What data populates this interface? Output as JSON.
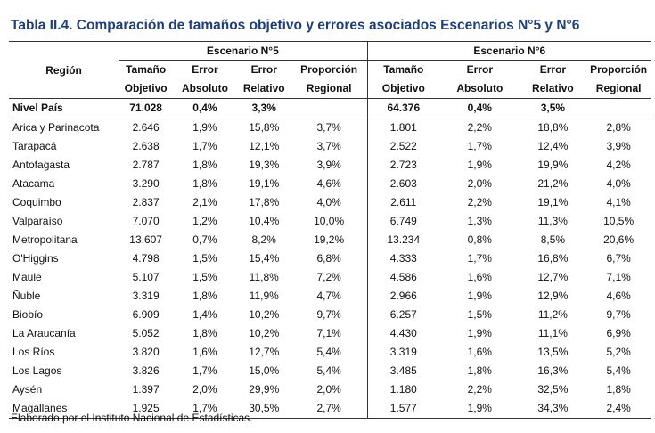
{
  "title": "Tabla II.4. Comparación de tamaños objetivo y errores asociados Escenarios N°5 y N°6",
  "header": {
    "region": "Región",
    "scenario5": "Escenario N°5",
    "scenario6": "Escenario N°6",
    "cols": [
      {
        "l1": "Tamaño",
        "l2": "Objetivo"
      },
      {
        "l1": "Error",
        "l2": "Absoluto"
      },
      {
        "l1": "Error",
        "l2": "Relativo"
      },
      {
        "l1": "Proporción",
        "l2": "Regional"
      }
    ]
  },
  "national": {
    "region": "Nivel País",
    "e5": [
      "71.028",
      "0,4%",
      "3,3%",
      ""
    ],
    "e6": [
      "64.376",
      "0,4%",
      "3,5%",
      ""
    ]
  },
  "rows": [
    {
      "region": "Arica y Parinacota",
      "e5": [
        "2.646",
        "1,9%",
        "15,8%",
        "3,7%"
      ],
      "e6": [
        "1.801",
        "2,2%",
        "18,8%",
        "2,8%"
      ]
    },
    {
      "region": "Tarapacá",
      "e5": [
        "2.638",
        "1,7%",
        "12,1%",
        "3,7%"
      ],
      "e6": [
        "2.522",
        "1,7%",
        "12,4%",
        "3,9%"
      ]
    },
    {
      "region": "Antofagasta",
      "e5": [
        "2.787",
        "1,8%",
        "19,3%",
        "3,9%"
      ],
      "e6": [
        "2.723",
        "1,9%",
        "19,9%",
        "4,2%"
      ]
    },
    {
      "region": "Atacama",
      "e5": [
        "3.290",
        "1,8%",
        "19,1%",
        "4,6%"
      ],
      "e6": [
        "2.603",
        "2,0%",
        "21,2%",
        "4,0%"
      ]
    },
    {
      "region": "Coquimbo",
      "e5": [
        "2.837",
        "2,1%",
        "17,8%",
        "4,0%"
      ],
      "e6": [
        "2.611",
        "2,2%",
        "19,1%",
        "4,1%"
      ]
    },
    {
      "region": "Valparaíso",
      "e5": [
        "7.070",
        "1,2%",
        "10,4%",
        "10,0%"
      ],
      "e6": [
        "6.749",
        "1,3%",
        "11,3%",
        "10,5%"
      ]
    },
    {
      "region": "Metropolitana",
      "e5": [
        "13.607",
        "0,7%",
        "8,2%",
        "19,2%"
      ],
      "e6": [
        "13.234",
        "0,8%",
        "8,5%",
        "20,6%"
      ]
    },
    {
      "region": "O'Higgins",
      "e5": [
        "4.798",
        "1,5%",
        "15,4%",
        "6,8%"
      ],
      "e6": [
        "4.333",
        "1,7%",
        "16,8%",
        "6,7%"
      ]
    },
    {
      "region": "Maule",
      "e5": [
        "5.107",
        "1,5%",
        "11,8%",
        "7,2%"
      ],
      "e6": [
        "4.586",
        "1,6%",
        "12,7%",
        "7,1%"
      ]
    },
    {
      "region": "Ñuble",
      "e5": [
        "3.319",
        "1,8%",
        "11,9%",
        "4,7%"
      ],
      "e6": [
        "2.966",
        "1,9%",
        "12,9%",
        "4,6%"
      ]
    },
    {
      "region": "Biobío",
      "e5": [
        "6.909",
        "1,4%",
        "10,2%",
        "9,7%"
      ],
      "e6": [
        "6.257",
        "1,5%",
        "11,2%",
        "9,7%"
      ]
    },
    {
      "region": "La Araucanía",
      "e5": [
        "5.052",
        "1,8%",
        "10,2%",
        "7,1%"
      ],
      "e6": [
        "4.430",
        "1,9%",
        "11,1%",
        "6,9%"
      ]
    },
    {
      "region": "Los Ríos",
      "e5": [
        "3.820",
        "1,6%",
        "12,7%",
        "5,4%"
      ],
      "e6": [
        "3.319",
        "1,6%",
        "13,5%",
        "5,2%"
      ]
    },
    {
      "region": "Los Lagos",
      "e5": [
        "3.826",
        "1,7%",
        "15,0%",
        "5,4%"
      ],
      "e6": [
        "3.485",
        "1,8%",
        "16,3%",
        "5,4%"
      ]
    },
    {
      "region": "Aysén",
      "e5": [
        "1.397",
        "2,0%",
        "29,9%",
        "2,0%"
      ],
      "e6": [
        "1.180",
        "2,2%",
        "32,5%",
        "1,8%"
      ]
    },
    {
      "region": "Magallanes",
      "e5": [
        "1.925",
        "1,7%",
        "30,5%",
        "2,7%"
      ],
      "e6": [
        "1.577",
        "1,9%",
        "34,3%",
        "2,4%"
      ]
    }
  ],
  "footer": "Elaborado por el Instituto Nacional de Estadísticas.",
  "colors": {
    "title": "#1f3f7a",
    "rule": "#333333"
  }
}
